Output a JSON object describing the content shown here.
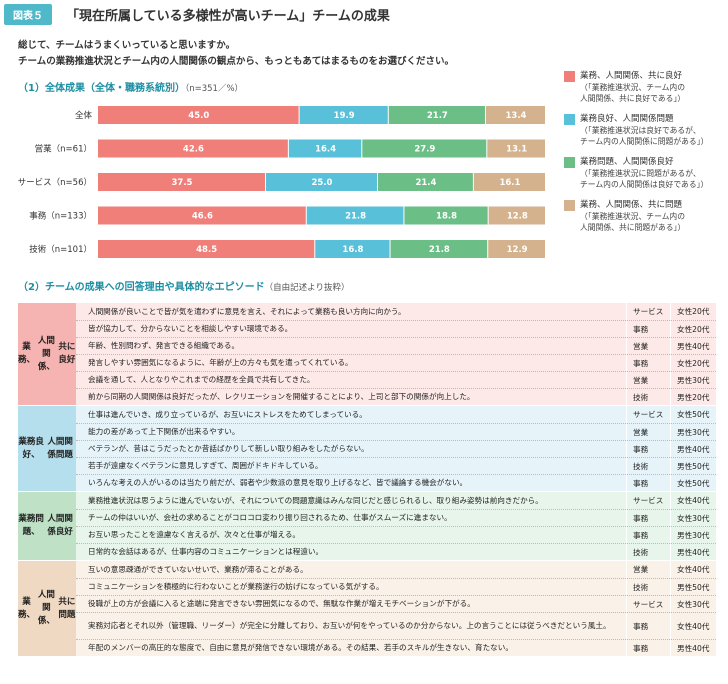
{
  "figure": {
    "badge": "図表５",
    "title": "「現在所属している多様性が高いチーム」チームの成果"
  },
  "question": {
    "line1": "総じて、チームはうまくいっていると思いますか。",
    "line2": "チームの業務推進状況とチーム内の人間関係の観点から、もっともあてはまるものをお選びください。"
  },
  "section1": {
    "title": "（1）全体成果（全体・職務系統別）",
    "note": "（n=351／%）"
  },
  "section2": {
    "title": "（2）チームの成果への回答理由や具体的なエピソード",
    "note": "（自由記述より抜粋）"
  },
  "colors": {
    "good_both": "#f07f7a",
    "business_good": "#58c0d8",
    "relation_good": "#6bbf86",
    "bad_both": "#d4b28e",
    "group_bg_1": "#f5b4b1",
    "group_bg_2": "#b5dfec",
    "group_bg_3": "#bfe2c7",
    "group_bg_4": "#efd9c3",
    "row_bg_1": "#fde9e8",
    "row_bg_2": "#e6f4f9",
    "row_bg_3": "#e8f5eb",
    "row_bg_4": "#faf1e8",
    "accent": "#4fb8c9"
  },
  "legend": [
    {
      "main": "業務、人間関係、共に良好",
      "sub": [
        "（「業務推進状況、チーム内の",
        "人間関係、共に良好である」）"
      ]
    },
    {
      "main": "業務良好、人間関係問題",
      "sub": [
        "（「業務推進状況は良好であるが、",
        "チーム内の人間関係に問題がある」）"
      ]
    },
    {
      "main": "業務問題、人間関係良好",
      "sub": [
        "（「業務推進状況に問題があるが、",
        "チーム内の人間関係は良好である」）"
      ]
    },
    {
      "main": "業務、人間関係、共に問題",
      "sub": [
        "（「業務推進状況、チーム内の",
        "人間関係、共に問題がある」）"
      ]
    }
  ],
  "chart_data": {
    "type": "bar",
    "orientation": "horizontal",
    "stacked": true,
    "unit": "%",
    "xlim": [
      0,
      100
    ],
    "categories": [
      "全体",
      "営業（n=61）",
      "サービス（n=56）",
      "事務（n=133）",
      "技術（n=101）"
    ],
    "series": [
      {
        "name": "業務、人間関係、共に良好",
        "values": [
          45.0,
          42.6,
          37.5,
          46.6,
          48.5
        ]
      },
      {
        "name": "業務良好、人間関係問題",
        "values": [
          19.9,
          16.4,
          25.0,
          21.8,
          16.8
        ]
      },
      {
        "name": "業務問題、人間関係良好",
        "values": [
          21.7,
          27.9,
          21.4,
          18.8,
          21.8
        ]
      },
      {
        "name": "業務、人間関係、共に問題",
        "values": [
          13.4,
          13.1,
          16.1,
          12.8,
          12.9
        ]
      }
    ],
    "value_labels": [
      [
        "45.0",
        "19.9",
        "21.7",
        "13.4"
      ],
      [
        "42.6",
        "16.4",
        "27.9",
        "13.1"
      ],
      [
        "37.5",
        "25.0",
        "21.4",
        "16.1"
      ],
      [
        "46.6",
        "21.8",
        "18.8",
        "12.8"
      ],
      [
        "48.5",
        "16.8",
        "21.8",
        "12.9"
      ]
    ],
    "legend_position": "right",
    "grid": false
  },
  "episodes": [
    {
      "label": [
        "業務、",
        "人間関係、",
        "共に良好"
      ],
      "rows": [
        {
          "text": "人間関係が良いことで皆が気を遣わずに意見を言え、それによって業務も良い方向に向かう。",
          "industry": "サービス",
          "demo": "女性20代"
        },
        {
          "text": "皆が協力して、分からないことを相談しやすい環境である。",
          "industry": "事務",
          "demo": "女性20代"
        },
        {
          "text": "年齢、性別問わず、発言できる組織である。",
          "industry": "営業",
          "demo": "男性40代"
        },
        {
          "text": "発言しやすい雰囲気になるように、年齢が上の方々も気を遣ってくれている。",
          "industry": "事務",
          "demo": "女性20代"
        },
        {
          "text": "会議を通して、人となりやこれまでの経歴を全員で共有してきた。",
          "industry": "営業",
          "demo": "男性30代"
        },
        {
          "text": "前から同期の人間関係は良好だったが、レクリエーションを開催することにより、上司と部下の関係が向上した。",
          "industry": "技術",
          "demo": "男性20代"
        }
      ]
    },
    {
      "label": [
        "業務良好、",
        "人間関係問題"
      ],
      "rows": [
        {
          "text": "仕事は進んでいき、成り立っているが、お互いにストレスをためてしまっている。",
          "industry": "サービス",
          "demo": "女性50代"
        },
        {
          "text": "能力の差があって上下関係が出来るやすい。",
          "industry": "営業",
          "demo": "男性30代"
        },
        {
          "text": "ベテランが、昔はこうだったとか昔話ばかりして新しい取り組みをしたがらない。",
          "industry": "事務",
          "demo": "男性40代"
        },
        {
          "text": "若手が遠慮なくベテランに意見しすぎて、周囲がドキドキしている。",
          "industry": "技術",
          "demo": "男性50代"
        },
        {
          "text": "いろんな考えの人がいるのは当たり前だが、弱者や少数派の意見を取り上げるなど、皆で議論する機会がない。",
          "industry": "事務",
          "demo": "女性50代"
        }
      ]
    },
    {
      "label": [
        "業務問題、",
        "人間関係良好"
      ],
      "rows": [
        {
          "text": "業務推進状況は思うように進んでいないが、それについての問題意識はみんな同じだと感じられるし、取り組み姿勢は前向きだから。",
          "industry": "サービス",
          "demo": "女性40代"
        },
        {
          "text": "チームの仲はいいが、会社の求めることがコロコロ変わり振り回されるため、仕事がスムーズに進まない。",
          "industry": "事務",
          "demo": "女性30代"
        },
        {
          "text": "お互い思ったことを遠慮なく言えるが、次々と仕事が増える。",
          "industry": "事務",
          "demo": "男性30代"
        },
        {
          "text": "日常的な会話はあるが、仕事内容のコミュニケーションとは程遠い。",
          "industry": "技術",
          "demo": "男性40代"
        }
      ]
    },
    {
      "label": [
        "業務、",
        "人間関係、",
        "共に問題"
      ],
      "rows": [
        {
          "text": "互いの意思疎通ができていないせいで、業務が滞ることがある。",
          "industry": "営業",
          "demo": "女性40代"
        },
        {
          "text": "コミュニケーションを積極的に行わないことが業務遂行の妨げになっている気がする。",
          "industry": "技術",
          "demo": "男性50代"
        },
        {
          "text": "役職が上の方が会議に入ると途端に発言できない雰囲気になるので、無駄な作業が増えモチベーションが下がる。",
          "industry": "サービス",
          "demo": "女性30代"
        },
        {
          "text": "実務対応者とそれ以外（管理職、リーダー）が完全に分離しており、お互いが何をやっているのか分からない。上の言うことには従うべきだという風土。",
          "industry": "事務",
          "demo": "女性40代",
          "tall": true
        },
        {
          "text": "年配のメンバーの高圧的な態度で、自由に意見が発信できない環境がある。その結果、若手のスキルが生きない、育たない。",
          "industry": "事務",
          "demo": "男性40代"
        }
      ]
    }
  ]
}
